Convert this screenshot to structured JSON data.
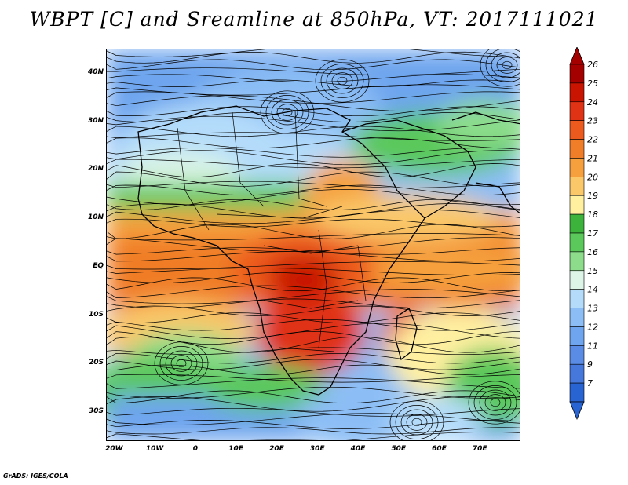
{
  "title": "WBPT [C] and Sreamline at 850hPa, VT: 2017111021",
  "credit": "GrADS: IGES/COLA",
  "map": {
    "lon_range": [
      -22,
      80
    ],
    "lat_range": [
      -36,
      45
    ],
    "lat_ticks": [
      {
        "value": 40,
        "label": "40N"
      },
      {
        "value": 30,
        "label": "30N"
      },
      {
        "value": 20,
        "label": "20N"
      },
      {
        "value": 10,
        "label": "10N"
      },
      {
        "value": 0,
        "label": "EQ"
      },
      {
        "value": -10,
        "label": "10S"
      },
      {
        "value": -20,
        "label": "20S"
      },
      {
        "value": -30,
        "label": "30S"
      }
    ],
    "lon_ticks": [
      {
        "value": -20,
        "label": "20W"
      },
      {
        "value": -10,
        "label": "10W"
      },
      {
        "value": 0,
        "label": "0"
      },
      {
        "value": 10,
        "label": "10E"
      },
      {
        "value": 20,
        "label": "20E"
      },
      {
        "value": 30,
        "label": "30E"
      },
      {
        "value": 40,
        "label": "40E"
      },
      {
        "value": 50,
        "label": "50E"
      },
      {
        "value": 60,
        "label": "60E"
      },
      {
        "value": 70,
        "label": "70E"
      }
    ]
  },
  "colorbar": {
    "levels": [
      "26",
      "25",
      "24",
      "23",
      "22",
      "21",
      "20",
      "19",
      "18",
      "17",
      "16",
      "15",
      "14",
      "13",
      "12",
      "11",
      "9",
      "7"
    ],
    "colors": [
      "#a50000",
      "#c81400",
      "#e03214",
      "#ec5a1e",
      "#f07d28",
      "#f5a03c",
      "#fac869",
      "#fff0a0",
      "#3cb43c",
      "#5ac85a",
      "#8cdc8c",
      "#dcf5e6",
      "#b4dcfa",
      "#8cbef5",
      "#6ea5ee",
      "#5a8ce6",
      "#4678dc",
      "#2864d2"
    ],
    "top_arrow_color": "#a50000",
    "bottom_arrow_color": "#2864d2"
  }
}
